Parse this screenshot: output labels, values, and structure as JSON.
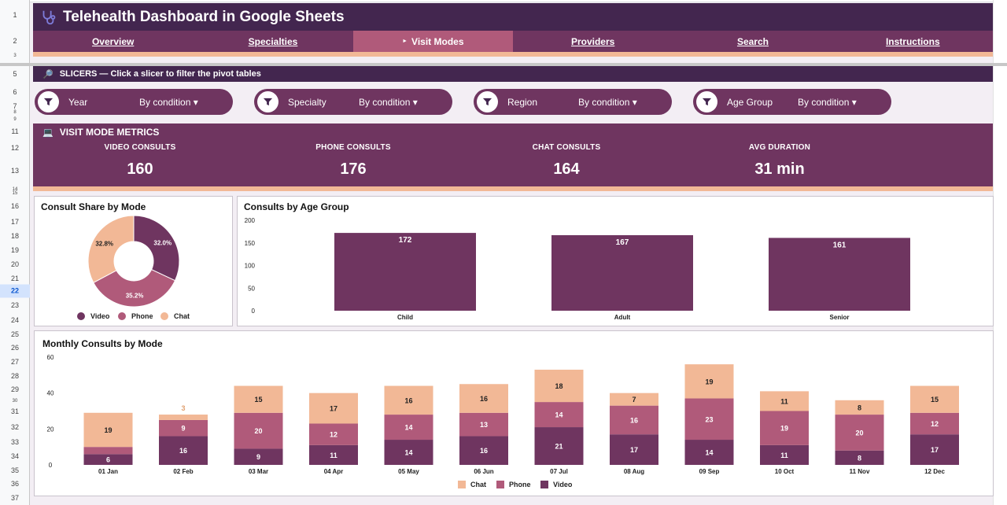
{
  "header": {
    "title": "Telehealth Dashboard in Google Sheets"
  },
  "nav": {
    "tabs": [
      {
        "label": "Overview",
        "active": false
      },
      {
        "label": "Specialties",
        "active": false
      },
      {
        "label": "Visit Modes",
        "active": true
      },
      {
        "label": "Providers",
        "active": false
      },
      {
        "label": "Search",
        "active": false
      },
      {
        "label": "Instructions",
        "active": false
      }
    ]
  },
  "rows": {
    "labels": [
      "1",
      "2",
      "3",
      "5",
      "6",
      "7",
      "8",
      "9",
      "11",
      "12",
      "13",
      "14",
      "15",
      "16",
      "17",
      "18",
      "19",
      "20",
      "21",
      "22",
      "23",
      "24",
      "25",
      "26",
      "27",
      "28",
      "29",
      "30",
      "31",
      "32",
      "33",
      "34",
      "35",
      "36",
      "37"
    ],
    "selected": "22"
  },
  "slicers": {
    "banner": "SLICERS — Click a slicer to filter the pivot tables",
    "items": [
      {
        "name": "Year",
        "value": "By condition"
      },
      {
        "name": "Specialty",
        "value": "By condition"
      },
      {
        "name": "Region",
        "value": "By condition"
      },
      {
        "name": "Age Group",
        "value": "By condition"
      }
    ]
  },
  "metrics": {
    "title": "VISIT MODE METRICS",
    "items": [
      {
        "label": "VIDEO CONSULTS",
        "value": "160"
      },
      {
        "label": "PHONE CONSULTS",
        "value": "176"
      },
      {
        "label": "CHAT CONSULTS",
        "value": "164"
      },
      {
        "label": "AVG DURATION",
        "value": "31 min"
      }
    ]
  },
  "colors": {
    "dark": "#43264f",
    "video": "#6f3560",
    "phone": "#b05a7a",
    "chat": "#f2b896",
    "active_tab": "#b05a7a"
  },
  "chart_data": [
    {
      "type": "pie",
      "title": "Consult Share by Mode",
      "donut": true,
      "categories": [
        "Video",
        "Phone",
        "Chat"
      ],
      "values": [
        32.0,
        35.2,
        32.8
      ],
      "labels": [
        "32.0%",
        "35.2%",
        "32.8%"
      ],
      "legend": "bottom"
    },
    {
      "type": "bar",
      "title": "Consults by Age Group",
      "categories": [
        "Child",
        "Adult",
        "Senior"
      ],
      "values": [
        172,
        167,
        161
      ],
      "ylim": [
        0,
        200
      ],
      "yticks": [
        0,
        50,
        100,
        150,
        200
      ],
      "legend": "none"
    },
    {
      "type": "bar",
      "stacked": true,
      "title": "Monthly Consults by Mode",
      "categories": [
        "01 Jan",
        "02 Feb",
        "03 Mar",
        "04 Apr",
        "05 May",
        "06 Jun",
        "07 Jul",
        "08 Aug",
        "09 Sep",
        "10 Oct",
        "11 Nov",
        "12 Dec"
      ],
      "series": [
        {
          "name": "Video",
          "values": [
            6,
            16,
            9,
            11,
            14,
            16,
            21,
            17,
            14,
            11,
            8,
            17
          ]
        },
        {
          "name": "Phone",
          "values": [
            4,
            9,
            20,
            12,
            14,
            13,
            14,
            16,
            23,
            19,
            20,
            12
          ]
        },
        {
          "name": "Chat",
          "values": [
            19,
            3,
            15,
            17,
            16,
            16,
            18,
            7,
            19,
            11,
            8,
            15
          ]
        }
      ],
      "ylim": [
        0,
        60
      ],
      "yticks": [
        0,
        20,
        40,
        60
      ],
      "legend": "bottom",
      "legend_order": [
        "Chat",
        "Phone",
        "Video"
      ]
    }
  ]
}
